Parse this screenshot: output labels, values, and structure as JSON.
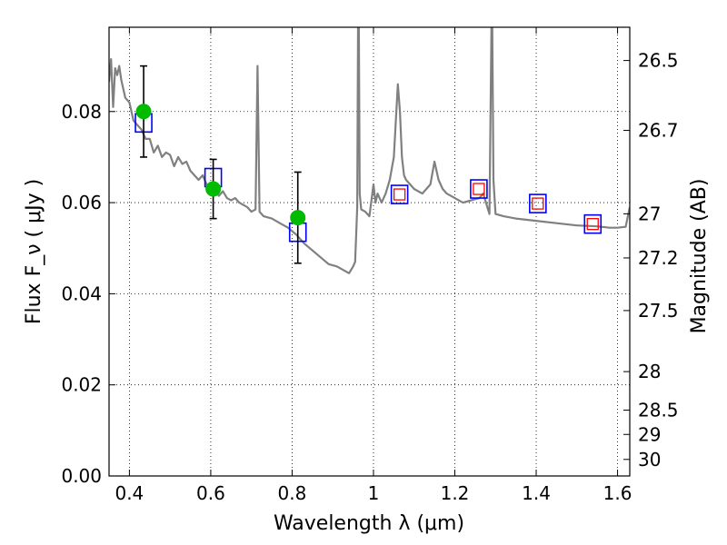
{
  "chart_data": {
    "type": "scatter",
    "xlabel": "Wavelength  λ (μm)",
    "ylabel": "Flux  F_ν  ( μJy )",
    "ylabel_right": "Magnitude (AB)",
    "xlim": [
      0.35,
      1.63
    ],
    "ylim": [
      0.0,
      0.0985
    ],
    "grid": true,
    "x_ticks": [
      0.4,
      0.6,
      0.8,
      1.0,
      1.2,
      1.4,
      1.6
    ],
    "x_tick_labels": [
      "0.4",
      "0.6",
      "0.8",
      "1",
      "1.2",
      "1.4",
      "1.6"
    ],
    "y_ticks": [
      0.0,
      0.02,
      0.04,
      0.06,
      0.08
    ],
    "y_tick_labels": [
      "0.00",
      "0.02",
      "0.04",
      "0.06",
      "0.08"
    ],
    "mag_ticks": [
      26.5,
      26.7,
      27,
      27.2,
      27.5,
      28,
      28.5,
      29,
      30
    ],
    "mag_tick_labels": [
      "26.5",
      "26.7",
      "27",
      "27.2",
      "27.5",
      "28",
      "28.5",
      "29",
      "30"
    ],
    "colors": {
      "spectrum": "#808080",
      "observed": "#00bb00",
      "model_box": "#0000ff",
      "model_red": "#ff0000",
      "errorbar": "#000000",
      "grid": "#000000"
    },
    "spectrum": {
      "name": "",
      "x": [
        0.35,
        0.355,
        0.36,
        0.365,
        0.37,
        0.375,
        0.38,
        0.39,
        0.4,
        0.41,
        0.42,
        0.43,
        0.44,
        0.45,
        0.46,
        0.47,
        0.48,
        0.49,
        0.5,
        0.51,
        0.52,
        0.53,
        0.54,
        0.55,
        0.56,
        0.57,
        0.58,
        0.59,
        0.6,
        0.61,
        0.62,
        0.63,
        0.64,
        0.65,
        0.66,
        0.67,
        0.68,
        0.69,
        0.7,
        0.71,
        0.715,
        0.72,
        0.725,
        0.73,
        0.75,
        0.77,
        0.79,
        0.81,
        0.83,
        0.85,
        0.87,
        0.89,
        0.91,
        0.93,
        0.94,
        0.95,
        0.955,
        0.96,
        0.962,
        0.964,
        0.966,
        0.97,
        0.98,
        0.99,
        1.0,
        1.005,
        1.01,
        1.02,
        1.03,
        1.04,
        1.05,
        1.06,
        1.065,
        1.07,
        1.075,
        1.08,
        1.09,
        1.1,
        1.12,
        1.14,
        1.15,
        1.16,
        1.17,
        1.18,
        1.2,
        1.22,
        1.24,
        1.26,
        1.27,
        1.28,
        1.285,
        1.29,
        1.292,
        1.295,
        1.3,
        1.32,
        1.35,
        1.4,
        1.45,
        1.5,
        1.55,
        1.58,
        1.6,
        1.62,
        1.63
      ],
      "y": [
        0.0865,
        0.0915,
        0.081,
        0.0895,
        0.088,
        0.09,
        0.087,
        0.083,
        0.082,
        0.078,
        0.077,
        0.076,
        0.074,
        0.074,
        0.071,
        0.0725,
        0.07,
        0.071,
        0.0705,
        0.068,
        0.07,
        0.0685,
        0.069,
        0.067,
        0.066,
        0.065,
        0.066,
        0.064,
        0.063,
        0.0625,
        0.0615,
        0.0625,
        0.061,
        0.0605,
        0.061,
        0.06,
        0.0595,
        0.059,
        0.058,
        0.0585,
        0.09,
        0.058,
        0.0575,
        0.057,
        0.0565,
        0.0555,
        0.0545,
        0.053,
        0.051,
        0.0495,
        0.048,
        0.0465,
        0.046,
        0.045,
        0.0445,
        0.046,
        0.047,
        0.059,
        0.0985,
        0.0985,
        0.062,
        0.0585,
        0.058,
        0.057,
        0.064,
        0.06,
        0.062,
        0.06,
        0.062,
        0.065,
        0.07,
        0.086,
        0.08,
        0.07,
        0.066,
        0.065,
        0.064,
        0.063,
        0.062,
        0.064,
        0.069,
        0.065,
        0.063,
        0.062,
        0.061,
        0.06,
        0.0605,
        0.061,
        0.062,
        0.059,
        0.0575,
        0.0985,
        0.0985,
        0.065,
        0.0575,
        0.057,
        0.0565,
        0.056,
        0.0555,
        0.055,
        0.0548,
        0.0545,
        0.0545,
        0.0547,
        0.059
      ]
    },
    "observed": {
      "name": "",
      "x": [
        0.435,
        0.606,
        0.814
      ],
      "y": [
        0.08,
        0.063,
        0.0567
      ],
      "err_low": [
        0.01,
        0.0065,
        0.01
      ],
      "err_high": [
        0.01,
        0.0065,
        0.01
      ]
    },
    "model_photometry": {
      "name": "",
      "x": [
        0.435,
        0.606,
        0.814,
        1.064,
        1.259,
        1.404,
        1.539
      ],
      "y": [
        0.0775,
        0.0655,
        0.0535,
        0.0618,
        0.063,
        0.0598,
        0.0553
      ],
      "red_inner": [
        false,
        false,
        false,
        true,
        true,
        true,
        true
      ]
    }
  }
}
